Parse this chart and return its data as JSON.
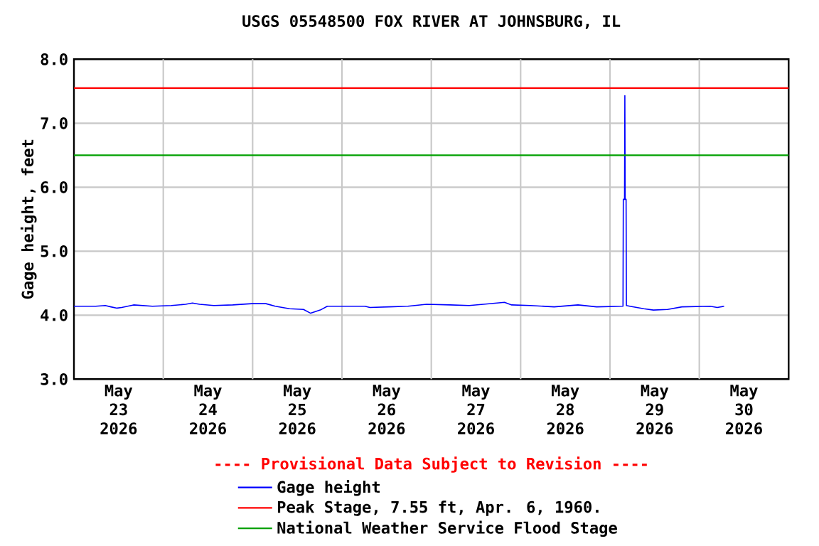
{
  "chart_data": {
    "type": "line",
    "title": "USGS 05548500 FOX RIVER AT JOHNSBURG, IL",
    "ylabel": "Gage height, feet",
    "xlim": [
      "2026-05-23T00:00",
      "2026-05-31T00:00"
    ],
    "xticks": [
      {
        "value": "2026-05-23T12:00",
        "label": "May 23 2026"
      },
      {
        "value": "2026-05-24T12:00",
        "label": "May 24 2026"
      },
      {
        "value": "2026-05-25T12:00",
        "label": "May 25 2026"
      },
      {
        "value": "2026-05-26T12:00",
        "label": "May 26 2026"
      },
      {
        "value": "2026-05-27T12:00",
        "label": "May 27 2026"
      },
      {
        "value": "2026-05-28T12:00",
        "label": "May 28 2026"
      },
      {
        "value": "2026-05-29T12:00",
        "label": "May 29 2026"
      },
      {
        "value": "2026-05-30T12:00",
        "label": "May 30 2026"
      },
      {
        "value": "2026-05-24T00:00",
        "label": null
      },
      {
        "value": "2026-05-25T00:00",
        "label": null
      },
      {
        "value": "2026-05-26T00:00",
        "label": null
      },
      {
        "value": "2026-05-27T00:00",
        "label": null
      },
      {
        "value": "2026-05-28T00:00",
        "label": null
      },
      {
        "value": "2026-05-29T00:00",
        "label": null
      },
      {
        "value": "2026-05-30T00:00",
        "label": null
      }
    ],
    "ylim": [
      3,
      8
    ],
    "yticks": [
      {
        "value": 3,
        "label": "3.0"
      },
      {
        "value": 4,
        "label": "4.0"
      },
      {
        "value": 5,
        "label": "5.0"
      },
      {
        "value": 6,
        "label": "6.0"
      },
      {
        "value": 7,
        "label": "7.0"
      },
      {
        "value": 8,
        "label": "8.0"
      }
    ],
    "grid": true,
    "legend": "bottom",
    "annotations": [
      "---- Provisional Data Subject to Revision ----"
    ],
    "ref_lines": [
      {
        "axis": "y",
        "value": 7.55,
        "label": "Peak Stage, 7.55 ft, Apr. 6, 1960.",
        "color": "#ff0000"
      },
      {
        "axis": "y",
        "value": 6.5,
        "label": "National Weather Service Flood Stage",
        "color": "#00a000"
      }
    ],
    "series": [
      {
        "name": "Gage height",
        "color": "#0000ff",
        "x": [
          "2026-05-23T00:00",
          "2026-05-23T05:50",
          "2026-05-23T08:25",
          "2026-05-23T09:55",
          "2026-05-23T11:35",
          "2026-05-23T12:50",
          "2026-05-23T16:00",
          "2026-05-23T21:05",
          "2026-05-24T02:10",
          "2026-05-24T06:00",
          "2026-05-24T07:50",
          "2026-05-24T09:45",
          "2026-05-24T13:35",
          "2026-05-24T18:40",
          "2026-05-24T23:45",
          "2026-05-25T03:35",
          "2026-05-25T06:05",
          "2026-05-25T09:55",
          "2026-05-25T13:40",
          "2026-05-25T15:35",
          "2026-05-25T18:10",
          "2026-05-25T20:05",
          "2026-05-26T06:10",
          "2026-05-26T07:30",
          "2026-05-26T12:35",
          "2026-05-26T17:40",
          "2026-05-26T22:45",
          "2026-05-27T05:05",
          "2026-05-27T10:10",
          "2026-05-27T14:00",
          "2026-05-27T19:40",
          "2026-05-27T21:35",
          "2026-05-28T02:40",
          "2026-05-28T09:00",
          "2026-05-28T15:25",
          "2026-05-28T20:25",
          "2026-05-29T03:30",
          "2026-05-29T03:35",
          "2026-05-29T03:55",
          "2026-05-29T04:00",
          "2026-05-29T04:05",
          "2026-05-29T04:20",
          "2026-05-29T04:25",
          "2026-05-29T05:20",
          "2026-05-29T09:05",
          "2026-05-29T11:40",
          "2026-05-29T15:30",
          "2026-05-29T19:20",
          "2026-05-30T02:55",
          "2026-05-30T04:50",
          "2026-05-30T06:40"
        ],
        "values": [
          4.14,
          4.14,
          4.15,
          4.13,
          4.11,
          4.12,
          4.16,
          4.14,
          4.15,
          4.17,
          4.19,
          4.17,
          4.15,
          4.16,
          4.18,
          4.18,
          4.14,
          4.1,
          4.09,
          4.03,
          4.08,
          4.14,
          4.14,
          4.12,
          4.13,
          4.14,
          4.17,
          4.16,
          4.15,
          4.17,
          4.2,
          4.16,
          4.15,
          4.13,
          4.16,
          4.13,
          4.14,
          5.81,
          5.81,
          7.43,
          5.81,
          5.81,
          4.15,
          4.14,
          4.1,
          4.08,
          4.09,
          4.13,
          4.14,
          4.12,
          4.14
        ]
      }
    ]
  }
}
